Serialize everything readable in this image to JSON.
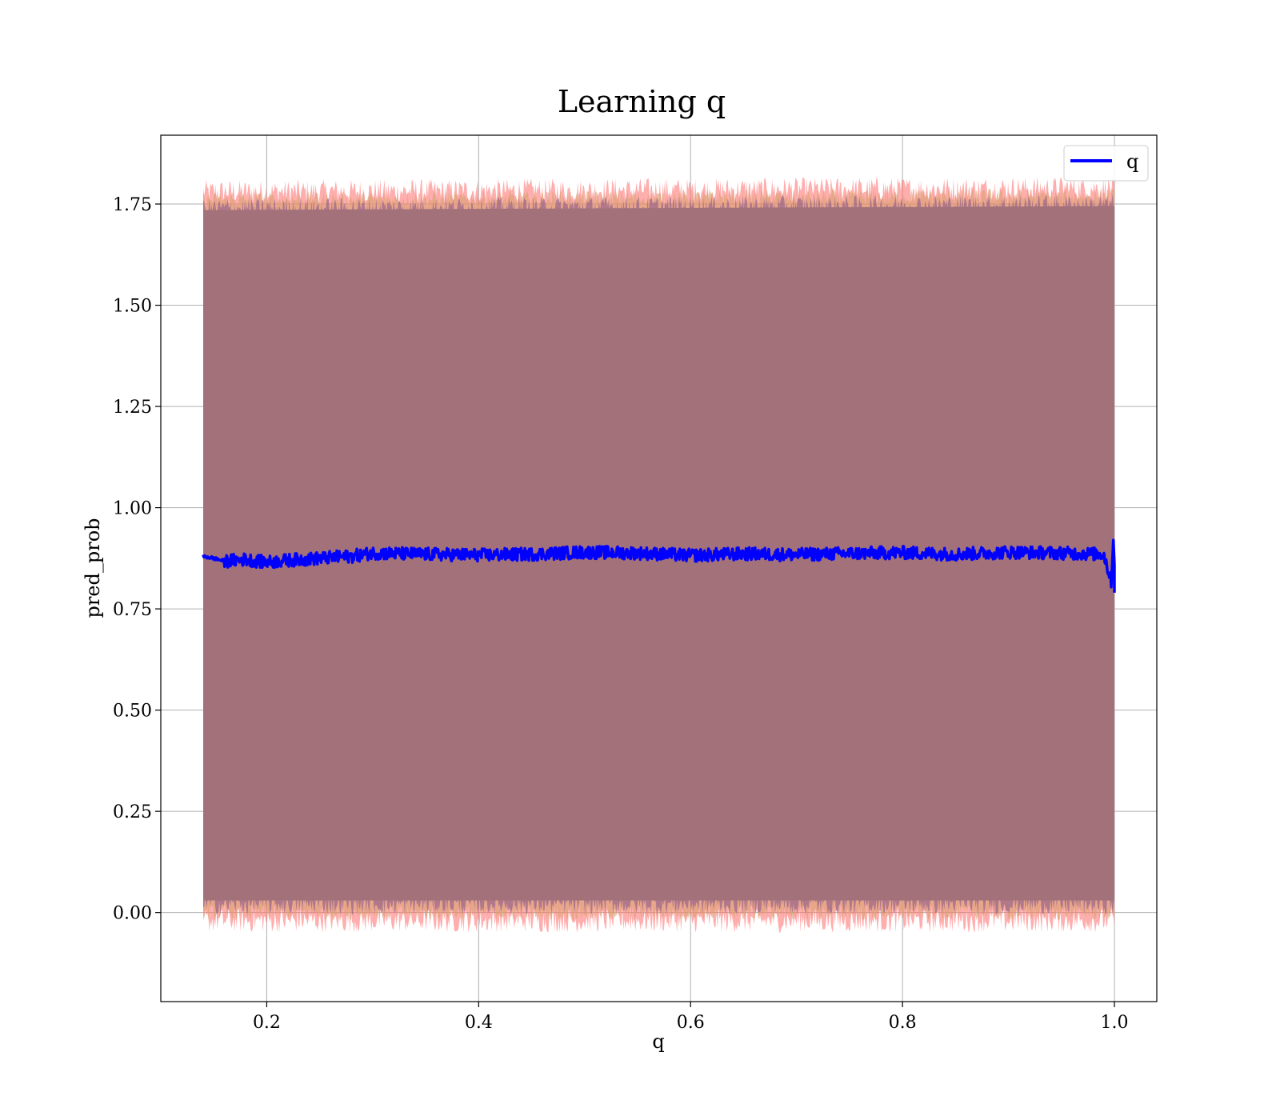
{
  "chart_data": {
    "type": "line",
    "title": "Learning q",
    "xlabel": "q",
    "ylabel": "pred_prob",
    "xlim": [
      0.1,
      1.04
    ],
    "ylim": [
      -0.22,
      1.92
    ],
    "xticks": [
      0.2,
      0.4,
      0.6,
      0.8,
      1.0
    ],
    "xtick_labels": [
      "0.2",
      "0.4",
      "0.6",
      "0.8",
      "1.0"
    ],
    "yticks": [
      0.0,
      0.25,
      0.5,
      0.75,
      1.0,
      1.25,
      1.5,
      1.75
    ],
    "ytick_labels": [
      "0.00",
      "0.25",
      "0.50",
      "0.75",
      "1.00",
      "1.25",
      "1.50",
      "1.75"
    ],
    "grid": true,
    "legend": {
      "placement": "top-right",
      "entries": [
        "q"
      ]
    },
    "colors": {
      "line": "#0000ff",
      "band_fill": "#a2717a",
      "band_edge_red": "#ff6b6b",
      "band_edge_purple": "#8a5a8a",
      "band_edge_orange": "#d9a070",
      "grid": "#b0b0b0"
    },
    "series": [
      {
        "name": "q",
        "x": [
          0.14,
          0.15,
          0.16,
          0.18,
          0.2,
          0.22,
          0.25,
          0.28,
          0.3,
          0.35,
          0.4,
          0.45,
          0.5,
          0.55,
          0.6,
          0.65,
          0.7,
          0.75,
          0.8,
          0.85,
          0.9,
          0.95,
          0.99,
          1.0
        ],
        "y": [
          0.88,
          0.875,
          0.868,
          0.872,
          0.865,
          0.87,
          0.875,
          0.88,
          0.888,
          0.885,
          0.883,
          0.885,
          0.89,
          0.888,
          0.882,
          0.886,
          0.884,
          0.887,
          0.889,
          0.885,
          0.89,
          0.888,
          0.885,
          0.79
        ]
      }
    ],
    "band": {
      "x": [
        0.14,
        1.0
      ],
      "upper": [
        1.75,
        1.76
      ],
      "lower": [
        0.0,
        0.0
      ],
      "upper_noise_range": [
        1.71,
        1.82
      ],
      "lower_noise_range": [
        -0.07,
        0.05
      ]
    }
  }
}
